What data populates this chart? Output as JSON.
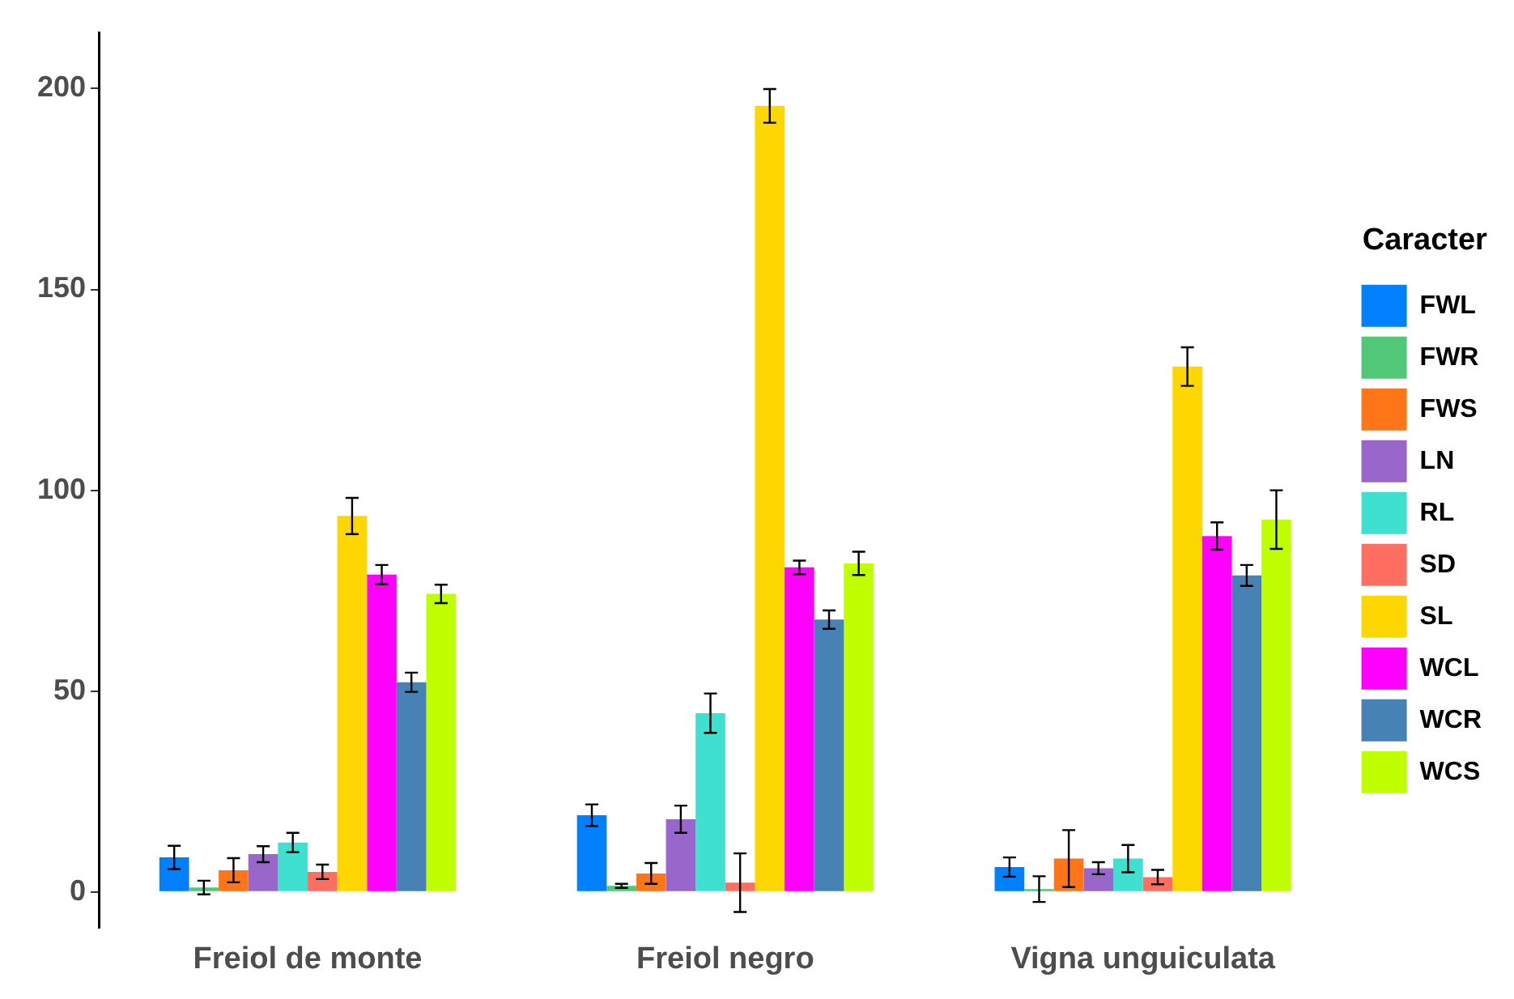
{
  "chart_data": {
    "type": "bar",
    "legend_title": "Caracter",
    "legend": "right",
    "grid": false,
    "categories": [
      "Freiol de monte",
      "Freiol negro",
      "Vigna unguiculata"
    ],
    "ylim": [
      -9,
      214
    ],
    "yticks": [
      0,
      50,
      100,
      150,
      200
    ],
    "series": [
      {
        "name": "FWL",
        "color": "#0080ff",
        "values": [
          8.6,
          19.1,
          6.2
        ],
        "errors": [
          2.9,
          2.7,
          2.4
        ]
      },
      {
        "name": "FWR",
        "color": "#50c878",
        "values": [
          1.1,
          1.5,
          0.7
        ],
        "errors": [
          1.7,
          0.5,
          3.2
        ]
      },
      {
        "name": "FWS",
        "color": "#ff7518",
        "values": [
          5.4,
          4.6,
          8.3
        ],
        "errors": [
          3,
          2.6,
          7.1
        ]
      },
      {
        "name": "LN",
        "color": "#9966cc",
        "values": [
          9.4,
          18.1,
          5.9
        ],
        "errors": [
          2,
          3.4,
          1.5
        ]
      },
      {
        "name": "RL",
        "color": "#40e0d0",
        "values": [
          12.3,
          44.5,
          8.3
        ],
        "errors": [
          2.4,
          4.9,
          3.4
        ]
      },
      {
        "name": "SD",
        "color": "#ff6f61",
        "values": [
          5,
          2.3,
          3.7
        ],
        "errors": [
          1.8,
          7.3,
          1.8
        ]
      },
      {
        "name": "SL",
        "color": "#ffd700",
        "values": [
          93.6,
          195.7,
          130.8
        ],
        "errors": [
          4.5,
          4.2,
          4.8
        ]
      },
      {
        "name": "WCL",
        "color": "#ff00ff",
        "values": [
          79,
          80.8,
          88.6
        ],
        "errors": [
          2.4,
          1.7,
          3.4
        ]
      },
      {
        "name": "WCR",
        "color": "#4682b4",
        "values": [
          52.2,
          67.8,
          78.8
        ],
        "errors": [
          2.4,
          2.3,
          2.6
        ]
      },
      {
        "name": "WCS",
        "color": "#c0ff00",
        "values": [
          74.2,
          81.8,
          92.7
        ],
        "errors": [
          2.3,
          2.9,
          7.3
        ]
      }
    ]
  }
}
